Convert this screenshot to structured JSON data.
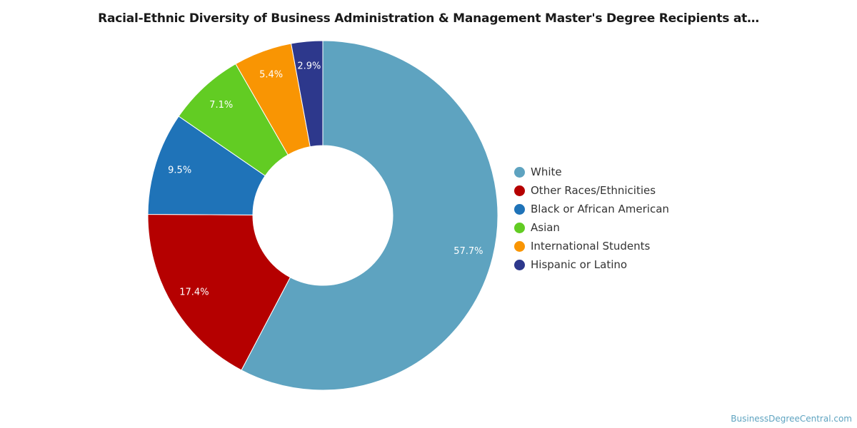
{
  "chart_data": {
    "type": "pie",
    "title": "Racial-Ethnic Diversity of Business Administration & Management Master's Degree Recipients at…",
    "donut": true,
    "series": [
      {
        "name": "White",
        "value": 57.7,
        "label": "57.7%",
        "color": "#5ea3c0"
      },
      {
        "name": "Other Races/Ethnicities",
        "value": 17.4,
        "label": "17.4%",
        "color": "#b50000"
      },
      {
        "name": "Black or African American",
        "value": 9.5,
        "label": "9.5%",
        "color": "#1f73b8"
      },
      {
        "name": "Asian",
        "value": 7.1,
        "label": "7.1%",
        "color": "#62cc23"
      },
      {
        "name": "International Students",
        "value": 5.4,
        "label": "5.4%",
        "color": "#f99503"
      },
      {
        "name": "Hispanic or Latino",
        "value": 2.9,
        "label": "2.9%",
        "color": "#2d388c"
      }
    ],
    "legend_position": "right"
  },
  "source": "BusinessDegreeCentral.com"
}
